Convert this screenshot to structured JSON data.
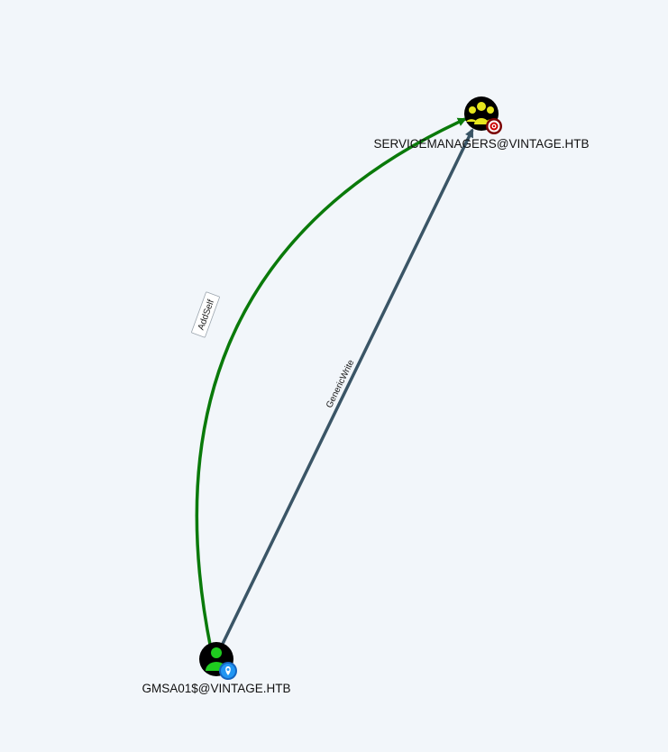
{
  "graph": {
    "nodes": {
      "target": {
        "label": "SERVICEMANAGERS@VINTAGE.HTB",
        "type": "group",
        "icon": "group-icon",
        "badge": "target-icon",
        "colors": {
          "body": "#000000",
          "glyph": "#e6e61e",
          "badge": "#cc0000"
        }
      },
      "source": {
        "label": "GMSA01$@VINTAGE.HTB",
        "type": "user",
        "icon": "user-icon",
        "badge": "owned-pin-icon",
        "colors": {
          "body": "#000000",
          "glyph": "#1fcc1f",
          "badge": "#2196f3"
        }
      }
    },
    "edges": {
      "addself": {
        "label": "AddSelf",
        "from": "GMSA01$@VINTAGE.HTB",
        "to": "SERVICEMANAGERS@VINTAGE.HTB",
        "color": "#0a7a0a"
      },
      "genericwrite": {
        "label": "GenericWrite",
        "from": "GMSA01$@VINTAGE.HTB",
        "to": "SERVICEMANAGERS@VINTAGE.HTB",
        "color": "#3a5566"
      }
    },
    "background_color": "#f2f6fa"
  }
}
